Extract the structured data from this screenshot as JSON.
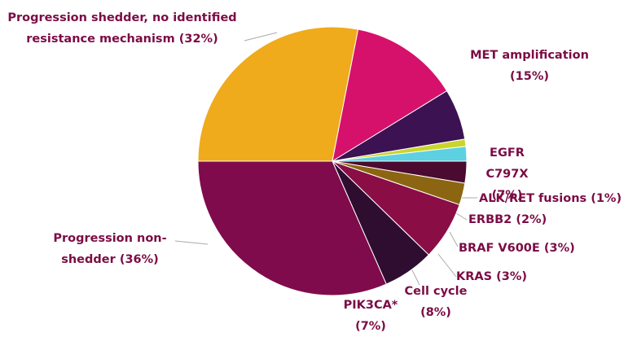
{
  "chart_data": {
    "type": "pie",
    "categories": [
      "Progression shedder, no identified resistance mechanism",
      "MET amplification",
      "EGFR C797X",
      "ALK/RET fusions",
      "ERBB2",
      "BRAF V600E",
      "KRAS",
      "Cell cycle",
      "PIK3CA*",
      "Progression non-shedder"
    ],
    "values": [
      32,
      15,
      7,
      1,
      2,
      3,
      3,
      8,
      7,
      36
    ],
    "value_labels": [
      "(32%)",
      "(15%)",
      "(7%)",
      "(1%)",
      "(2%)",
      "(3%)",
      "(3%)",
      "(8%)",
      "(7%)",
      "(36%)"
    ],
    "colors": [
      "#efab1c",
      "#d5116b",
      "#3c1253",
      "#c9d52c",
      "#5dd0e1",
      "#4b0a2f",
      "#8c6512",
      "#8a0d46",
      "#2f0d31",
      "#7f0b4c"
    ]
  }
}
